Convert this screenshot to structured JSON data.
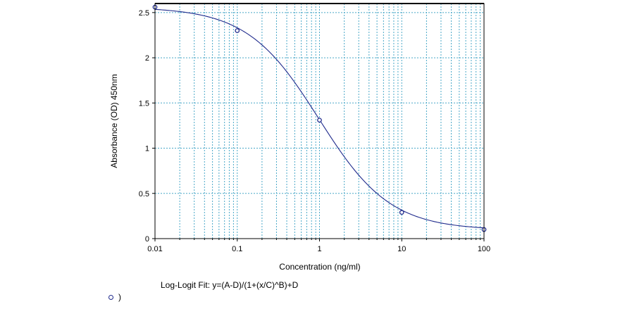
{
  "chart_data": {
    "type": "scatter",
    "title": "",
    "xlabel": "Concentration (ng/ml)",
    "ylabel": "Absorbance (OD) 450nm",
    "x_scale": "log",
    "xlim": [
      0.01,
      100
    ],
    "ylim": [
      0,
      2.6
    ],
    "x_ticks": [
      0.01,
      0.1,
      1,
      10,
      100
    ],
    "x_tick_labels": [
      "0.01",
      "0.1",
      "1",
      "10",
      "100"
    ],
    "y_ticks": [
      0,
      0.5,
      1,
      1.5,
      2,
      2.5
    ],
    "y_tick_labels": [
      "0",
      "0.5",
      "1",
      "1.5",
      "2",
      "2.5"
    ],
    "grid": true,
    "series": [
      {
        "name": ")",
        "x": [
          0.01,
          0.1,
          1,
          10,
          100
        ],
        "y": [
          2.56,
          2.3,
          1.31,
          0.29,
          0.1
        ],
        "color": "#1f2a8c",
        "marker": "circle-open"
      }
    ],
    "fit": {
      "label": "Log-Logit Fit: y=(A-D)/(1+(x/C)^B)+D",
      "A": 2.56,
      "B": 1.0,
      "C": 0.98,
      "D": 0.095,
      "color": "#1f2a8c"
    },
    "grid_color": "#4aa8c8",
    "legend_position": "bottom-left"
  }
}
